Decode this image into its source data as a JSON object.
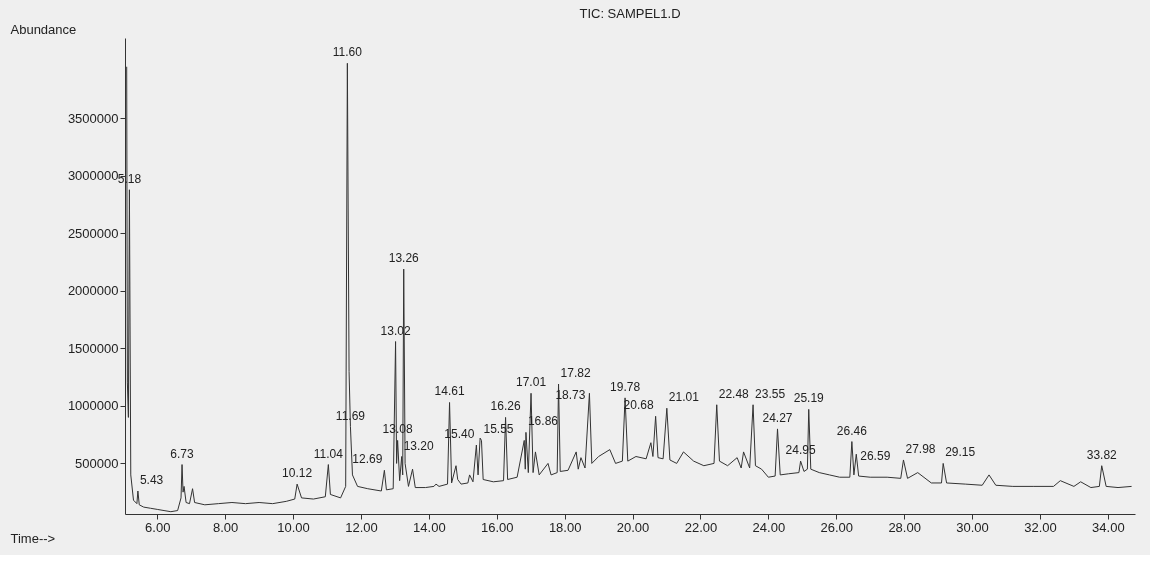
{
  "chart_data": {
    "type": "line",
    "title": "TIC: SAMPEL1.D",
    "xlabel": "Time-->",
    "ylabel": "Abundance",
    "xlim": [
      5.05,
      34.8
    ],
    "xticks": [
      {
        "value": 6,
        "label": "6.00"
      },
      {
        "value": 8,
        "label": "8.00"
      },
      {
        "value": 10,
        "label": "10.00"
      },
      {
        "value": 12,
        "label": "12.00"
      },
      {
        "value": 14,
        "label": "14.00"
      },
      {
        "value": 16,
        "label": "16.00"
      },
      {
        "value": 18,
        "label": "18.00"
      },
      {
        "value": 20,
        "label": "20.00"
      },
      {
        "value": 22,
        "label": "22.00"
      },
      {
        "value": 24,
        "label": "24.00"
      },
      {
        "value": 26,
        "label": "26.00"
      },
      {
        "value": 28,
        "label": "28.00"
      },
      {
        "value": 30,
        "label": "30.00"
      },
      {
        "value": 32,
        "label": "32.00"
      },
      {
        "value": 34,
        "label": "34.00"
      }
    ],
    "ylim": [
      60000,
      4200000
    ],
    "yticks": [
      500000,
      1000000,
      1500000,
      2000000,
      2500000,
      3000000,
      3500000
    ],
    "grid": false,
    "legend": false,
    "marker": "none",
    "line_style": "solid",
    "series": [
      {
        "color": "#333333",
        "x": [
          5.1,
          5.12,
          5.15,
          5.18,
          5.22,
          5.3,
          5.4,
          5.43,
          5.47,
          5.6,
          5.8,
          6.0,
          6.2,
          6.4,
          6.6,
          6.7,
          6.73,
          6.76,
          6.79,
          6.85,
          6.95,
          7.04,
          7.1,
          7.4,
          7.8,
          8.2,
          8.6,
          9.0,
          9.4,
          9.8,
          10.05,
          10.12,
          10.25,
          10.6,
          10.95,
          11.04,
          11.1,
          11.4,
          11.55,
          11.6,
          11.65,
          11.69,
          11.75,
          11.9,
          12.2,
          12.6,
          12.69,
          12.75,
          12.95,
          13.02,
          13.05,
          13.08,
          13.14,
          13.2,
          13.23,
          13.26,
          13.3,
          13.4,
          13.52,
          13.6,
          13.9,
          14.15,
          14.21,
          14.3,
          14.55,
          14.61,
          14.67,
          14.8,
          14.85,
          14.95,
          15.15,
          15.2,
          15.3,
          15.4,
          15.45,
          15.51,
          15.55,
          15.6,
          15.9,
          16.2,
          16.26,
          16.32,
          16.6,
          16.81,
          16.84,
          16.86,
          16.93,
          17.01,
          17.07,
          17.14,
          17.25,
          17.51,
          17.6,
          17.78,
          17.82,
          17.87,
          18.1,
          18.34,
          18.4,
          18.48,
          18.6,
          18.73,
          18.8,
          19.0,
          19.33,
          19.5,
          19.7,
          19.78,
          19.86,
          20.1,
          20.4,
          20.54,
          20.6,
          20.68,
          20.75,
          20.9,
          21.01,
          21.1,
          21.3,
          21.5,
          21.8,
          22.1,
          22.4,
          22.48,
          22.56,
          22.8,
          23.08,
          23.2,
          23.27,
          23.45,
          23.55,
          23.62,
          23.8,
          24.0,
          24.2,
          24.27,
          24.35,
          24.6,
          24.9,
          24.95,
          25.05,
          25.15,
          25.19,
          25.25,
          25.5,
          25.8,
          26.1,
          26.4,
          26.46,
          26.52,
          26.59,
          26.66,
          27.0,
          27.5,
          27.9,
          27.98,
          28.1,
          28.4,
          28.8,
          29.1,
          29.15,
          29.25,
          29.8,
          30.3,
          30.5,
          30.7,
          31.2,
          31.8,
          32.4,
          32.6,
          33.0,
          33.2,
          33.5,
          33.75,
          33.82,
          33.95,
          34.3,
          34.7
        ],
        "values": [
          3950000,
          1200000,
          900000,
          2880000,
          400000,
          180000,
          150000,
          260000,
          140000,
          120000,
          110000,
          100000,
          90000,
          80000,
          90000,
          200000,
          490000,
          250000,
          300000,
          160000,
          150000,
          280000,
          160000,
          140000,
          150000,
          160000,
          150000,
          160000,
          150000,
          170000,
          190000,
          320000,
          200000,
          190000,
          210000,
          490000,
          230000,
          200000,
          300000,
          3980000,
          1300000,
          820000,
          400000,
          300000,
          280000,
          260000,
          440000,
          270000,
          280000,
          1560000,
          500000,
          700000,
          350000,
          560000,
          400000,
          2190000,
          500000,
          300000,
          450000,
          290000,
          290000,
          300000,
          320000,
          300000,
          320000,
          1030000,
          330000,
          480000,
          360000,
          320000,
          330000,
          400000,
          340000,
          660000,
          400000,
          720000,
          700000,
          360000,
          340000,
          350000,
          900000,
          360000,
          380000,
          700000,
          450000,
          770000,
          420000,
          1110000,
          420000,
          600000,
          400000,
          500000,
          400000,
          420000,
          1190000,
          430000,
          440000,
          600000,
          450000,
          550000,
          460000,
          1110000,
          500000,
          560000,
          620000,
          500000,
          520000,
          1070000,
          520000,
          560000,
          540000,
          680000,
          560000,
          910000,
          550000,
          540000,
          980000,
          530000,
          500000,
          600000,
          520000,
          480000,
          500000,
          1010000,
          520000,
          480000,
          550000,
          460000,
          600000,
          460000,
          1010000,
          480000,
          450000,
          380000,
          390000,
          800000,
          400000,
          410000,
          420000,
          520000,
          430000,
          450000,
          970000,
          450000,
          420000,
          400000,
          380000,
          380000,
          690000,
          400000,
          580000,
          390000,
          380000,
          380000,
          370000,
          530000,
          370000,
          420000,
          330000,
          330000,
          500000,
          330000,
          320000,
          310000,
          400000,
          310000,
          300000,
          300000,
          300000,
          350000,
          300000,
          340000,
          290000,
          300000,
          480000,
          300000,
          290000,
          300000
        ]
      }
    ],
    "annotations": [
      {
        "text": "5.18",
        "x": 5.18,
        "y": 2880000
      },
      {
        "text": "5.43",
        "x": 5.43,
        "y": 260000
      },
      {
        "text": "6.73",
        "x": 6.73,
        "y": 490000
      },
      {
        "text": "10.12",
        "x": 10.12,
        "y": 320000
      },
      {
        "text": "11.04",
        "x": 11.04,
        "y": 490000
      },
      {
        "text": "11.60",
        "x": 11.6,
        "y": 3980000
      },
      {
        "text": "11.69",
        "x": 11.69,
        "y": 820000
      },
      {
        "text": "12.69",
        "x": 12.69,
        "y": 440000
      },
      {
        "text": "13.02",
        "x": 13.02,
        "y": 1560000
      },
      {
        "text": "13.08",
        "x": 13.08,
        "y": 700000
      },
      {
        "text": "13.20",
        "x": 13.2,
        "y": 560000
      },
      {
        "text": "13.26",
        "x": 13.26,
        "y": 2190000
      },
      {
        "text": "14.61",
        "x": 14.61,
        "y": 1030000
      },
      {
        "text": "15.40",
        "x": 15.4,
        "y": 660000
      },
      {
        "text": "15.55",
        "x": 15.55,
        "y": 700000
      },
      {
        "text": "16.26",
        "x": 16.26,
        "y": 900000
      },
      {
        "text": "16.86",
        "x": 16.86,
        "y": 770000
      },
      {
        "text": "17.01",
        "x": 17.01,
        "y": 1110000
      },
      {
        "text": "17.82",
        "x": 17.82,
        "y": 1190000
      },
      {
        "text": "18.73",
        "x": 18.73,
        "y": 1110000
      },
      {
        "text": "19.78",
        "x": 19.78,
        "y": 1070000
      },
      {
        "text": "20.68",
        "x": 20.68,
        "y": 910000
      },
      {
        "text": "21.01",
        "x": 21.01,
        "y": 980000
      },
      {
        "text": "22.48",
        "x": 22.48,
        "y": 1010000
      },
      {
        "text": "23.55",
        "x": 23.55,
        "y": 1010000
      },
      {
        "text": "24.27",
        "x": 24.27,
        "y": 800000
      },
      {
        "text": "24.95",
        "x": 24.95,
        "y": 520000
      },
      {
        "text": "25.19",
        "x": 25.19,
        "y": 970000
      },
      {
        "text": "26.46",
        "x": 26.46,
        "y": 690000
      },
      {
        "text": "26.59",
        "x": 26.59,
        "y": 580000
      },
      {
        "text": "27.98",
        "x": 27.98,
        "y": 530000
      },
      {
        "text": "29.15",
        "x": 29.15,
        "y": 500000
      },
      {
        "text": "33.82",
        "x": 33.82,
        "y": 480000
      }
    ]
  }
}
